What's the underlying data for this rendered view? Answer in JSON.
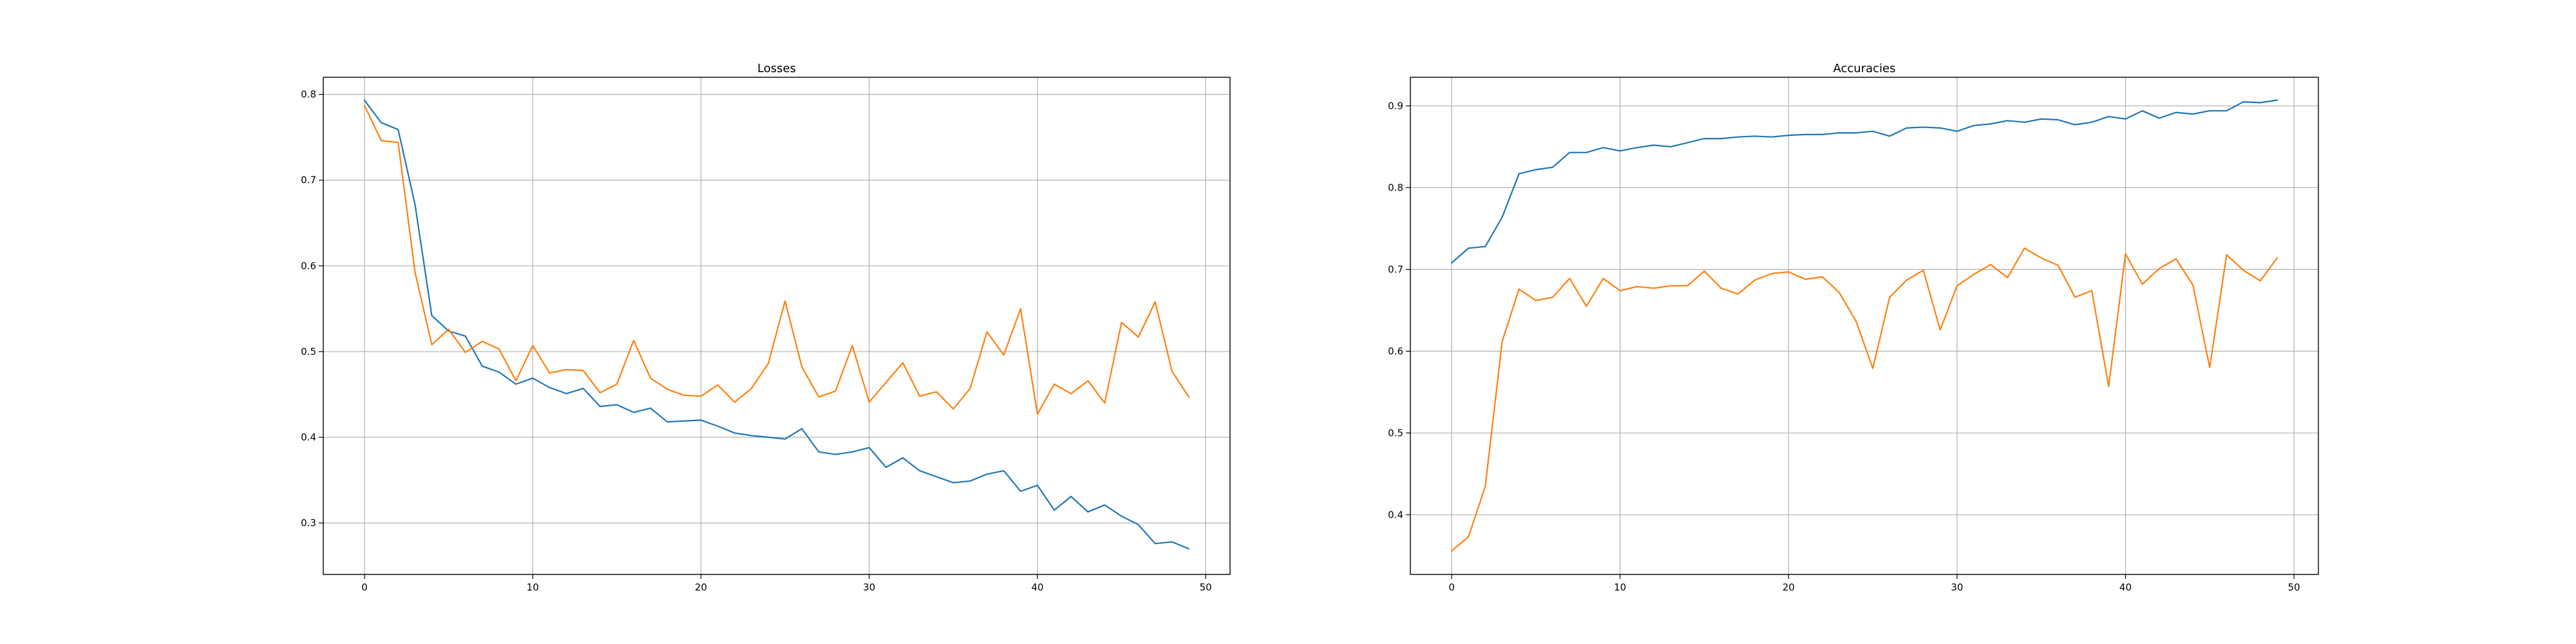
{
  "colors": {
    "series_1": "#1f77b4",
    "series_2": "#ff7f0e",
    "grid": "#b0b0b0"
  },
  "chart_data": [
    {
      "type": "line",
      "title": "Losses",
      "xlabel": "",
      "ylabel": "",
      "xlim": [
        -2.45,
        51.45
      ],
      "ylim": [
        0.24,
        0.82
      ],
      "xticks": [
        0,
        10,
        20,
        30,
        40,
        50
      ],
      "yticks": [
        0.3,
        0.4,
        0.5,
        0.6,
        0.7,
        0.8
      ],
      "ytick_labels": [
        "0.3",
        "0.4",
        "0.5",
        "0.6",
        "0.7",
        "0.8"
      ],
      "grid": true,
      "x": [
        0,
        1,
        2,
        3,
        4,
        5,
        6,
        7,
        8,
        9,
        10,
        11,
        12,
        13,
        14,
        15,
        16,
        17,
        18,
        19,
        20,
        21,
        22,
        23,
        24,
        25,
        26,
        27,
        28,
        29,
        30,
        31,
        32,
        33,
        34,
        35,
        36,
        37,
        38,
        39,
        40,
        41,
        42,
        43,
        44,
        45,
        46,
        47,
        48,
        49
      ],
      "series": [
        {
          "color": "#1f77b4",
          "values": [
            0.793,
            0.767,
            0.759,
            0.672,
            0.542,
            0.524,
            0.518,
            0.483,
            0.476,
            0.462,
            0.469,
            0.458,
            0.451,
            0.457,
            0.436,
            0.438,
            0.429,
            0.434,
            0.418,
            0.419,
            0.42,
            0.413,
            0.405,
            0.402,
            0.4,
            0.398,
            0.41,
            0.383,
            0.38,
            0.383,
            0.388,
            0.365,
            0.376,
            0.361,
            0.354,
            0.347,
            0.349,
            0.357,
            0.361,
            0.337,
            0.344,
            0.315,
            0.331,
            0.313,
            0.321,
            0.308,
            0.298,
            0.276,
            0.278,
            0.27
          ]
        },
        {
          "color": "#ff7f0e",
          "values": [
            0.787,
            0.746,
            0.744,
            0.593,
            0.508,
            0.526,
            0.499,
            0.512,
            0.503,
            0.466,
            0.507,
            0.475,
            0.479,
            0.478,
            0.452,
            0.462,
            0.513,
            0.469,
            0.456,
            0.449,
            0.448,
            0.461,
            0.441,
            0.457,
            0.486,
            0.559,
            0.482,
            0.447,
            0.454,
            0.507,
            0.441,
            0.464,
            0.487,
            0.448,
            0.453,
            0.433,
            0.457,
            0.523,
            0.496,
            0.55,
            0.427,
            0.462,
            0.451,
            0.466,
            0.44,
            0.534,
            0.517,
            0.558,
            0.477,
            0.447
          ]
        }
      ]
    },
    {
      "type": "line",
      "title": "Accuracies",
      "xlabel": "",
      "ylabel": "",
      "xlim": [
        -2.45,
        51.45
      ],
      "ylim": [
        0.327,
        0.935
      ],
      "xticks": [
        0,
        10,
        20,
        30,
        40,
        50
      ],
      "yticks": [
        0.4,
        0.5,
        0.6,
        0.7,
        0.8,
        0.9
      ],
      "ytick_labels": [
        "0.4",
        "0.5",
        "0.6",
        "0.7",
        "0.8",
        "0.9"
      ],
      "grid": true,
      "x": [
        0,
        1,
        2,
        3,
        4,
        5,
        6,
        7,
        8,
        9,
        10,
        11,
        12,
        13,
        14,
        15,
        16,
        17,
        18,
        19,
        20,
        21,
        22,
        23,
        24,
        25,
        26,
        27,
        28,
        29,
        30,
        31,
        32,
        33,
        34,
        35,
        36,
        37,
        38,
        39,
        40,
        41,
        42,
        43,
        44,
        45,
        46,
        47,
        48,
        49
      ],
      "series": [
        {
          "color": "#1f77b4",
          "values": [
            0.708,
            0.726,
            0.728,
            0.764,
            0.817,
            0.822,
            0.825,
            0.843,
            0.843,
            0.849,
            0.845,
            0.849,
            0.852,
            0.85,
            0.855,
            0.86,
            0.86,
            0.862,
            0.863,
            0.862,
            0.864,
            0.865,
            0.865,
            0.867,
            0.867,
            0.869,
            0.863,
            0.873,
            0.874,
            0.873,
            0.869,
            0.876,
            0.878,
            0.882,
            0.88,
            0.884,
            0.883,
            0.877,
            0.88,
            0.887,
            0.884,
            0.894,
            0.885,
            0.892,
            0.89,
            0.894,
            0.894,
            0.905,
            0.904,
            0.907
          ]
        },
        {
          "color": "#ff7f0e",
          "values": [
            0.356,
            0.373,
            0.435,
            0.612,
            0.676,
            0.662,
            0.666,
            0.689,
            0.655,
            0.689,
            0.674,
            0.679,
            0.677,
            0.68,
            0.68,
            0.698,
            0.677,
            0.67,
            0.687,
            0.695,
            0.697,
            0.688,
            0.691,
            0.672,
            0.637,
            0.579,
            0.666,
            0.687,
            0.699,
            0.626,
            0.68,
            0.694,
            0.706,
            0.69,
            0.726,
            0.714,
            0.705,
            0.666,
            0.674,
            0.557,
            0.719,
            0.682,
            0.701,
            0.713,
            0.681,
            0.58,
            0.718,
            0.699,
            0.686,
            0.714
          ]
        }
      ]
    }
  ]
}
